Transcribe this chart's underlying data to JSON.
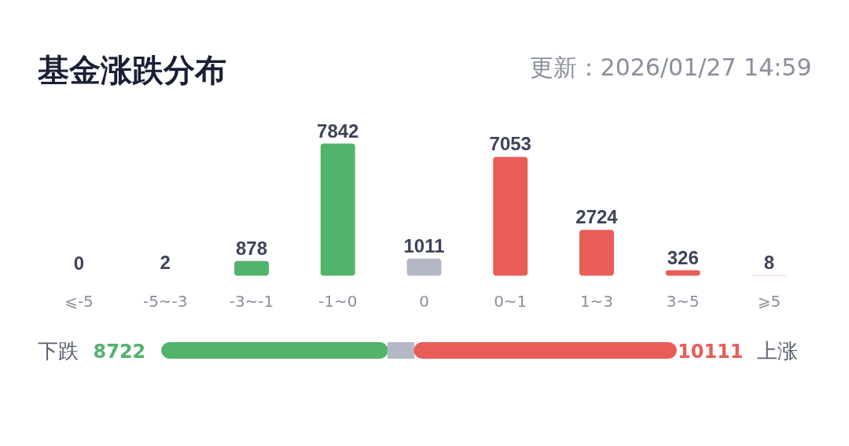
{
  "chart_data": [
    {
      "type": "bar",
      "title": "基金涨跌分布",
      "subtitle": "更新：2026/01/27 14:59",
      "categories": [
        "⩽-5",
        "-5~-3",
        "-3~-1",
        "-1~0",
        "0",
        "0~1",
        "1~3",
        "3~5",
        "⩾5"
      ],
      "values": [
        0,
        2,
        878,
        7842,
        1011,
        7053,
        2724,
        326,
        8
      ],
      "colors": [
        "#52b36a",
        "#52b36a",
        "#52b36a",
        "#52b36a",
        "#b4b8c4",
        "#e85d58",
        "#e85d58",
        "#e85d58",
        "#e85d58"
      ],
      "data_labels": true
    },
    {
      "type": "bar",
      "orientation": "horizontal",
      "stacked": true,
      "categories": [
        null
      ],
      "annotations": [
        "下跌",
        "上涨"
      ],
      "series": [
        {
          "color": "#52b36a",
          "values": [
            8722
          ],
          "value_labels": [
            "8722"
          ]
        },
        {
          "color": "#b4b8c4",
          "values": [
            1011
          ],
          "value_labels": [
            null
          ]
        },
        {
          "color": "#e85d58",
          "values": [
            10111
          ],
          "value_labels": [
            "10111"
          ]
        }
      ]
    }
  ]
}
